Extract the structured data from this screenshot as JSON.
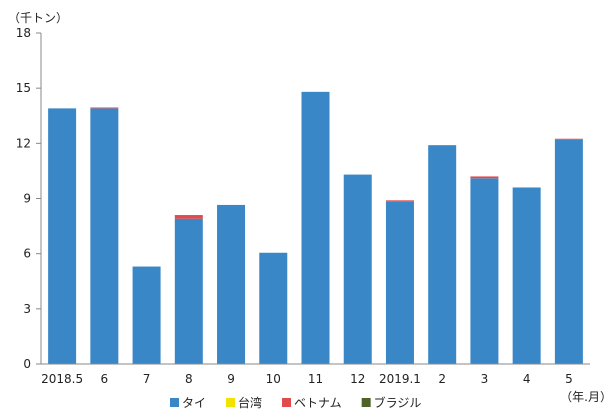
{
  "chart_data": {
    "type": "bar",
    "stacked": true,
    "y_unit_label": "（千トン）",
    "x_unit_label": "（年.月）",
    "categories": [
      "2018.5",
      "6",
      "7",
      "8",
      "9",
      "10",
      "11",
      "12",
      "2019.1",
      "2",
      "3",
      "4",
      "5"
    ],
    "ylim": [
      0,
      18
    ],
    "yticks": [
      0,
      3,
      6,
      9,
      12,
      15,
      18
    ],
    "grid": false,
    "legend_position": "bottom",
    "series": [
      {
        "name": "タイ",
        "color": "#3a87c8",
        "values": [
          13.9,
          13.9,
          5.3,
          7.9,
          8.65,
          6.05,
          14.8,
          10.3,
          8.85,
          11.9,
          10.1,
          9.6,
          12.2
        ]
      },
      {
        "name": "台湾",
        "color": "#f2e200",
        "values": [
          0,
          0,
          0,
          0,
          0,
          0,
          0,
          0,
          0,
          0,
          0,
          0,
          0
        ]
      },
      {
        "name": "ベトナム",
        "color": "#e04b4b",
        "values": [
          0,
          0.05,
          0,
          0.2,
          0,
          0,
          0,
          0,
          0.05,
          0,
          0.1,
          0,
          0.05
        ]
      },
      {
        "name": "ブラジル",
        "color": "#4f6228",
        "values": [
          0,
          0,
          0,
          0,
          0,
          0,
          0,
          0,
          0,
          0,
          0,
          0,
          0
        ]
      }
    ]
  }
}
